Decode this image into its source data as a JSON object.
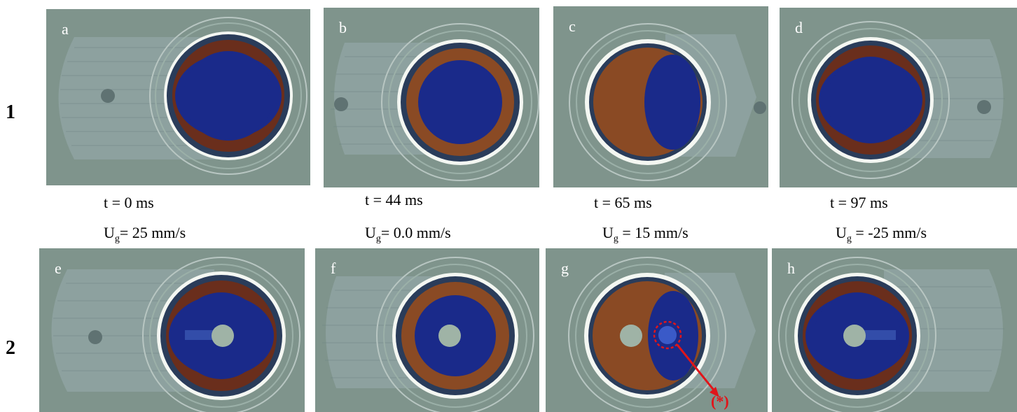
{
  "row_labels": [
    "1",
    "2"
  ],
  "panels": [
    "a",
    "b",
    "c",
    "d",
    "e",
    "f",
    "g",
    "h"
  ],
  "captions": [
    {
      "time": "t = 0 ms",
      "vel_prefix": "U",
      "vel_sub": "g",
      "vel_value": "= 25 mm/s"
    },
    {
      "time": "t = 44 ms",
      "vel_prefix": "U",
      "vel_sub": "g",
      "vel_value": "= 0.0 mm/s"
    },
    {
      "time": "t = 65 ms",
      "vel_prefix": "U",
      "vel_sub": "g",
      "vel_value": " = 15 mm/s"
    },
    {
      "time": "t = 97 ms",
      "vel_prefix": "U",
      "vel_sub": "g",
      "vel_value": " = -25 mm/s"
    }
  ],
  "annotation": {
    "label": "(*)",
    "color": "#e0151a"
  }
}
